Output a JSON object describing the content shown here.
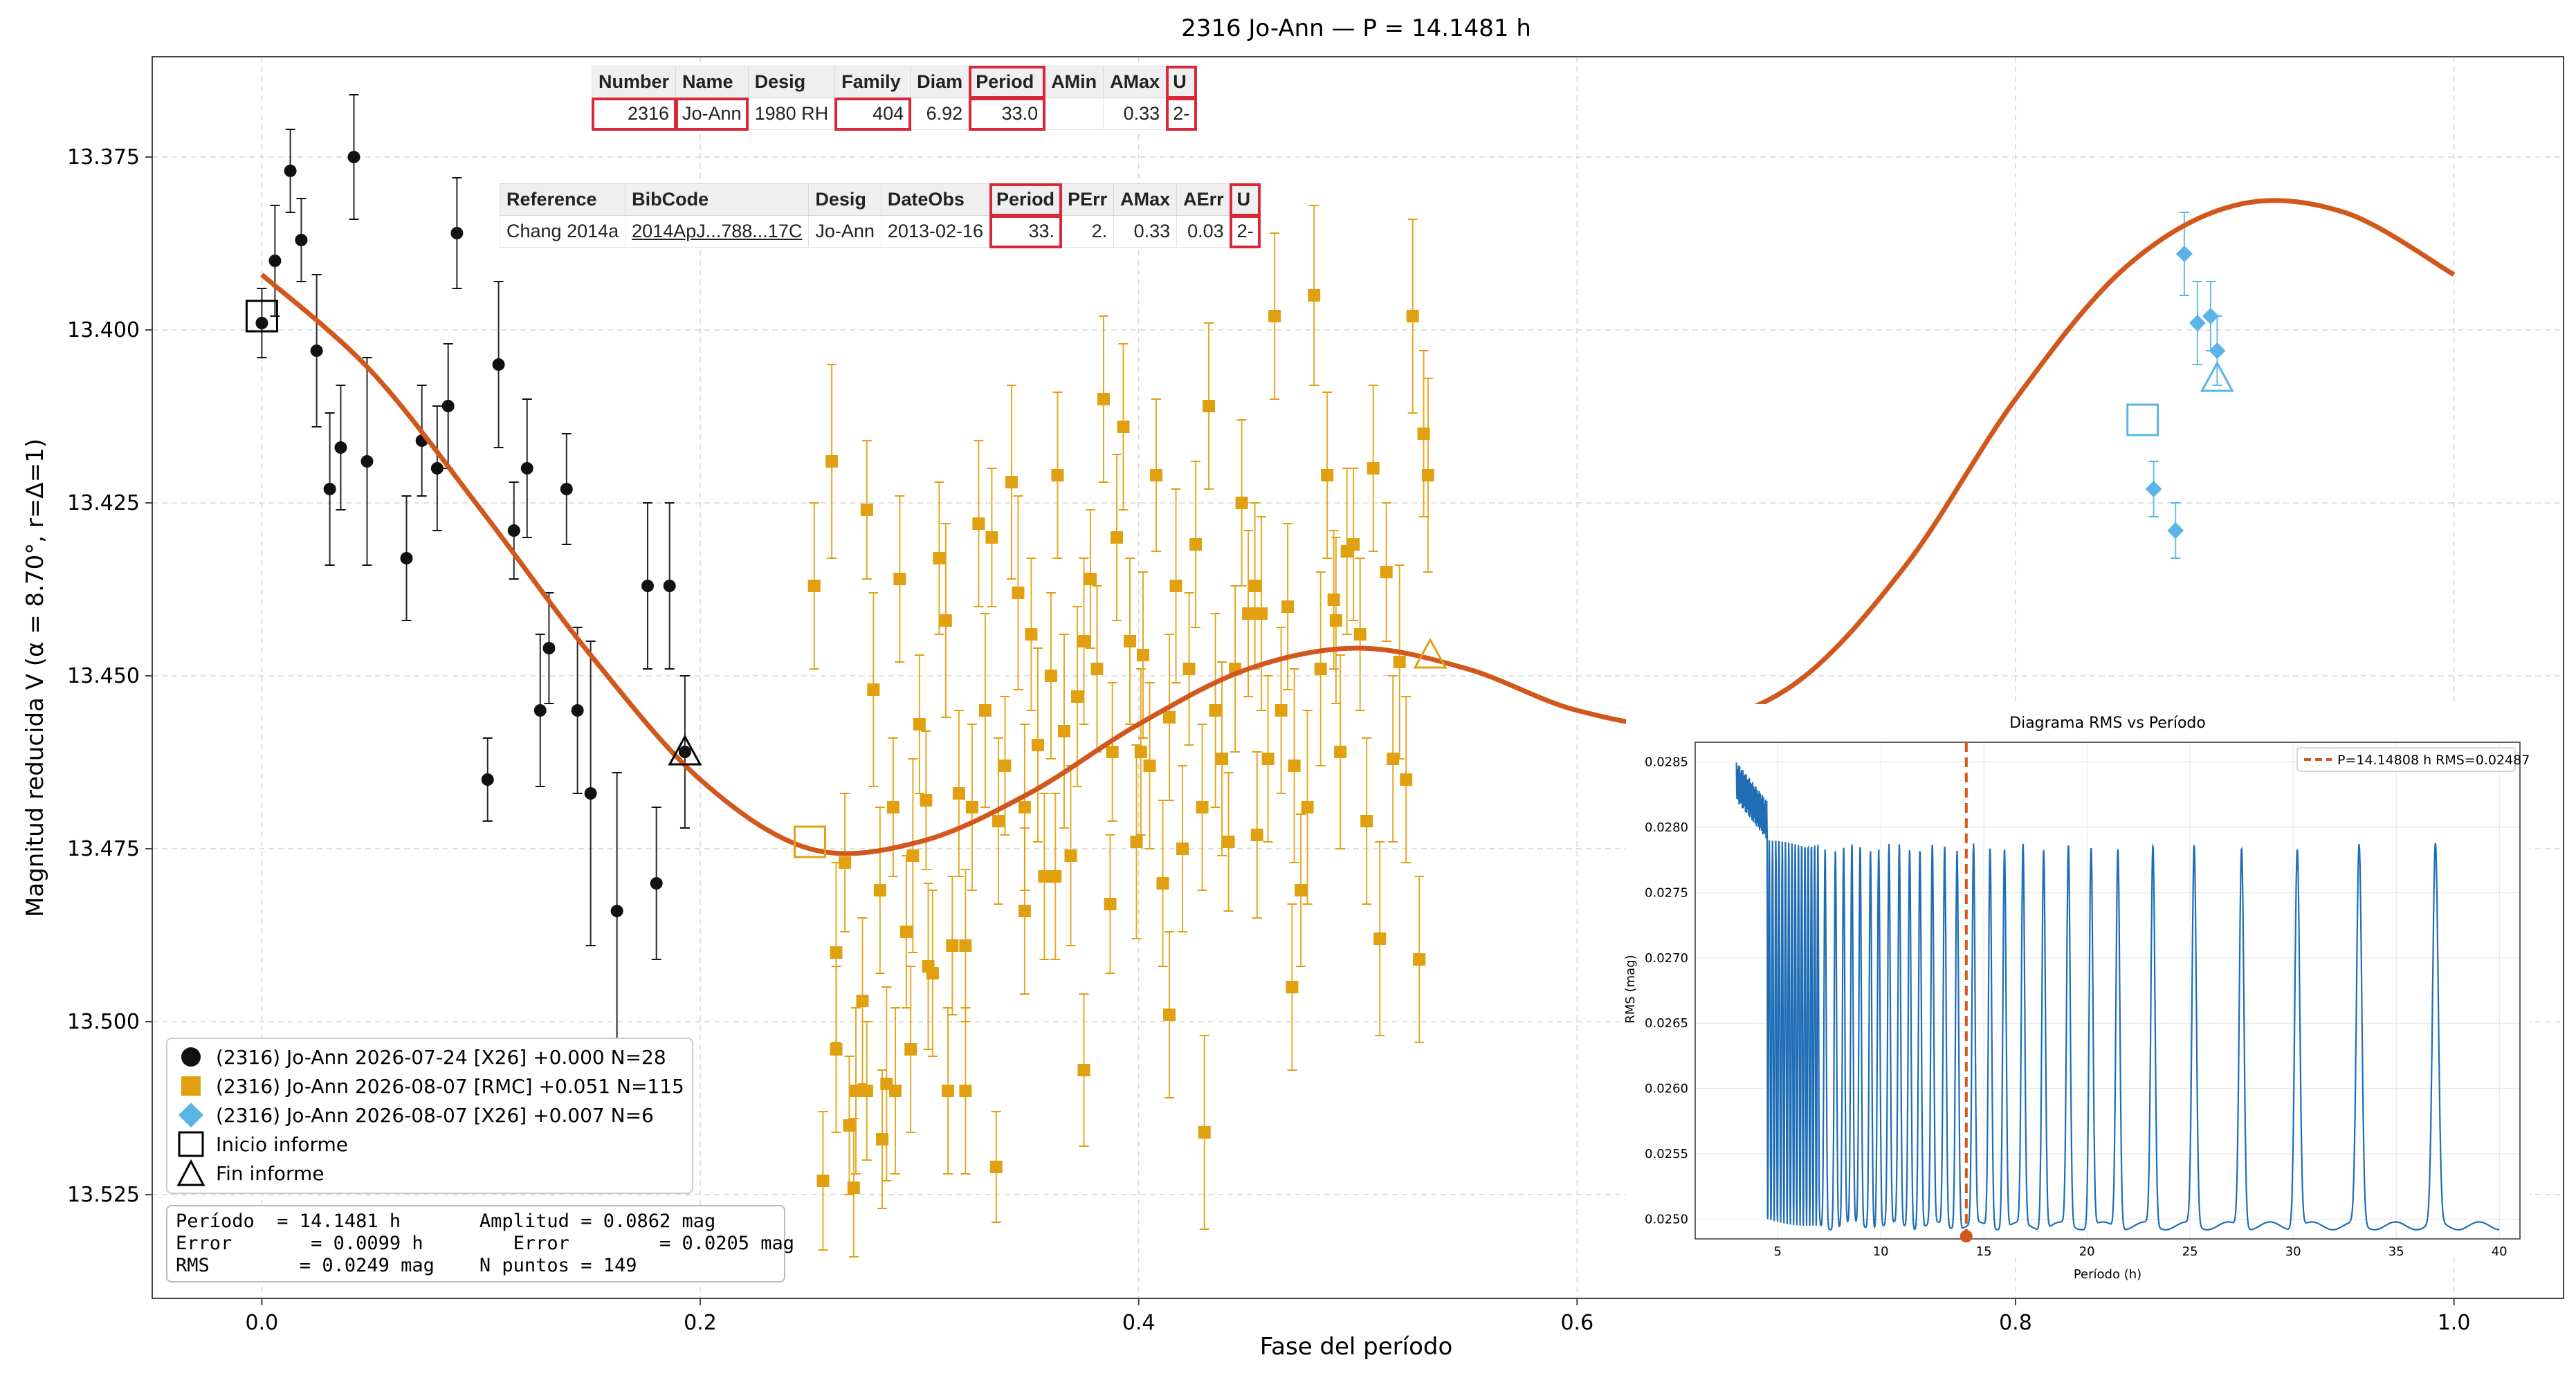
{
  "title": "2316 Jo-Ann — P = 14.1481 h",
  "xlabel": "Fase del período",
  "ylabel": "Magnitud reducida V  (α = 8.70°, r=Δ=1)",
  "lcdb_table": {
    "headers": [
      "Number",
      "Name",
      "Desig",
      "Family",
      "Diam",
      "Period",
      "AMin",
      "AMax",
      "U"
    ],
    "row": [
      "2316",
      "Jo-Ann",
      "1980 RH",
      "404",
      "6.92",
      "33.0",
      "",
      "0.33",
      "2-"
    ]
  },
  "ref_table": {
    "headers": [
      "Reference",
      "BibCode",
      "Desig",
      "DateObs",
      "Period",
      "PErr",
      "AMax",
      "AErr",
      "U"
    ],
    "row": [
      "Chang 2014a",
      "2014ApJ...788...17C",
      "Jo-Ann",
      "2013-02-16",
      "33.",
      "2.",
      "0.33",
      "0.03",
      "2-"
    ]
  },
  "legend": [
    {
      "label": "(2316) Jo-Ann 2026-07-24 [X26] +0.000 N=28",
      "marker": "circle",
      "color": "#111111"
    },
    {
      "label": "(2316) Jo-Ann 2026-08-07 [RMC] +0.051 N=115",
      "marker": "square",
      "color": "#e0a010"
    },
    {
      "label": "(2316) Jo-Ann 2026-08-07 [X26] +0.007 N=6",
      "marker": "diamond",
      "color": "#5ab4e8"
    },
    {
      "label": "Inicio informe",
      "marker": "open-square",
      "color": "#000000"
    },
    {
      "label": "Fin informe",
      "marker": "open-triangle",
      "color": "#000000"
    }
  ],
  "stats": {
    "line1": "Período  = 14.1481 h       Amplitud = 0.0862 mag",
    "line2": "Error       = 0.0099 h        Error        = 0.0205 mag",
    "line3": "RMS        = 0.0249 mag    N puntos = 149"
  },
  "inset": {
    "title": "Diagrama RMS vs Período",
    "xlabel": "Período (h)",
    "ylabel": "RMS (mag)",
    "legend": "P=14.14808 h   RMS=0.02487",
    "xticks": [
      5,
      10,
      15,
      20,
      25,
      30,
      35,
      40
    ],
    "yticks": [
      "0.0250",
      "0.0255",
      "0.0260",
      "0.0265",
      "0.0270",
      "0.0275",
      "0.0280",
      "0.0285"
    ],
    "xlim": [
      1,
      41
    ],
    "ylim": [
      0.02485,
      0.02865
    ],
    "best_period": 14.14808,
    "best_rms": 0.02487,
    "peaks": [
      4.8,
      5.3,
      5.7,
      6.1,
      6.5,
      6.9,
      7.3,
      7.8,
      8.2,
      8.6,
      9.0,
      9.5,
      9.9,
      10.4,
      10.9,
      11.4,
      11.9,
      12.5,
      13.1,
      13.7,
      14.5,
      15.3,
      16.0,
      16.9,
      17.9,
      19.1,
      20.2,
      21.5,
      23.2,
      25.2,
      27.5,
      30.2,
      33.2,
      36.9
    ],
    "colors": {
      "line": "#1f6db5",
      "marker": "#d2571c"
    }
  },
  "chart_data": {
    "type": "scatter",
    "title": "2316 Jo-Ann — P = 14.1481 h",
    "xlabel": "Fase del período",
    "ylabel": "Magnitud reducida V  (α = 8.70°, r=Δ=1)",
    "xlim": [
      -0.05,
      1.05
    ],
    "ylim": [
      13.54,
      13.3605
    ],
    "y_inverted": true,
    "xticks": [
      "0.0",
      "0.2",
      "0.4",
      "0.6",
      "0.8",
      "1.0"
    ],
    "yticks": [
      "13.375",
      "13.400",
      "13.425",
      "13.450",
      "13.475",
      "13.500",
      "13.525"
    ],
    "grid": true,
    "legend_position": "lower-left",
    "fit": {
      "name": "fit",
      "color": "#d2571c",
      "x": [
        0.0,
        0.05,
        0.1,
        0.15,
        0.2,
        0.25,
        0.3,
        0.35,
        0.4,
        0.45,
        0.5,
        0.55,
        0.6,
        0.65,
        0.7,
        0.75,
        0.8,
        0.85,
        0.9,
        0.95,
        1.0
      ],
      "y": [
        13.392,
        13.406,
        13.426,
        13.447,
        13.465,
        13.475,
        13.474,
        13.467,
        13.457,
        13.449,
        13.446,
        13.449,
        13.455,
        13.457,
        13.451,
        13.434,
        13.41,
        13.391,
        13.382,
        13.383,
        13.392
      ]
    },
    "series": [
      {
        "name": "(2316) Jo-Ann 2026-07-24 [X26] +0.000 N=28",
        "marker": "circle",
        "color": "#111111",
        "x": [
          0.0,
          0.006,
          0.013,
          0.018,
          0.025,
          0.031,
          0.036,
          0.048,
          0.066,
          0.073,
          0.08,
          0.085,
          0.089,
          0.103,
          0.108,
          0.115,
          0.121,
          0.127,
          0.131,
          0.139,
          0.144,
          0.15,
          0.162,
          0.176,
          0.18,
          0.186,
          0.193,
          0.042
        ],
        "y": [
          13.399,
          13.39,
          13.377,
          13.387,
          13.403,
          13.423,
          13.417,
          13.419,
          13.433,
          13.416,
          13.42,
          13.411,
          13.386,
          13.465,
          13.405,
          13.429,
          13.42,
          13.455,
          13.446,
          13.423,
          13.455,
          13.467,
          13.484,
          13.437,
          13.48,
          13.437,
          13.461,
          13.375
        ],
        "err": [
          0.005,
          0.008,
          0.006,
          0.006,
          0.011,
          0.011,
          0.009,
          0.015,
          0.009,
          0.008,
          0.009,
          0.009,
          0.008,
          0.006,
          0.012,
          0.007,
          0.01,
          0.011,
          0.008,
          0.008,
          0.012,
          0.022,
          0.02,
          0.012,
          0.011,
          0.012,
          0.011,
          0.009
        ]
      },
      {
        "name": "(2316) Jo-Ann 2026-08-07 [RMC] +0.051 N=115",
        "marker": "square",
        "color": "#e0a010",
        "x": [
          0.252,
          0.256,
          0.26,
          0.262,
          0.266,
          0.268,
          0.271,
          0.274,
          0.276,
          0.279,
          0.282,
          0.285,
          0.288,
          0.291,
          0.294,
          0.297,
          0.3,
          0.303,
          0.306,
          0.309,
          0.312,
          0.315,
          0.318,
          0.321,
          0.324,
          0.327,
          0.33,
          0.333,
          0.336,
          0.339,
          0.342,
          0.345,
          0.348,
          0.351,
          0.354,
          0.357,
          0.36,
          0.363,
          0.366,
          0.369,
          0.372,
          0.375,
          0.378,
          0.381,
          0.384,
          0.387,
          0.39,
          0.393,
          0.396,
          0.399,
          0.402,
          0.405,
          0.408,
          0.411,
          0.414,
          0.417,
          0.42,
          0.423,
          0.426,
          0.429,
          0.432,
          0.435,
          0.438,
          0.441,
          0.444,
          0.447,
          0.45,
          0.453,
          0.456,
          0.459,
          0.462,
          0.465,
          0.468,
          0.471,
          0.474,
          0.477,
          0.48,
          0.483,
          0.486,
          0.489,
          0.492,
          0.495,
          0.498,
          0.501,
          0.504,
          0.507,
          0.51,
          0.513,
          0.516,
          0.519,
          0.522,
          0.525,
          0.528,
          0.53,
          0.532,
          0.262,
          0.27,
          0.276,
          0.283,
          0.289,
          0.296,
          0.304,
          0.313,
          0.321,
          0.335,
          0.348,
          0.362,
          0.375,
          0.388,
          0.401,
          0.414,
          0.43,
          0.454,
          0.47,
          0.49
        ],
        "y": [
          13.437,
          13.523,
          13.419,
          13.49,
          13.477,
          13.515,
          13.51,
          13.497,
          13.426,
          13.452,
          13.481,
          13.509,
          13.469,
          13.436,
          13.487,
          13.476,
          13.457,
          13.468,
          13.493,
          13.433,
          13.442,
          13.489,
          13.467,
          13.51,
          13.469,
          13.428,
          13.455,
          13.43,
          13.471,
          13.463,
          13.422,
          13.438,
          13.469,
          13.444,
          13.46,
          13.479,
          13.45,
          13.421,
          13.458,
          13.476,
          13.453,
          13.445,
          13.436,
          13.449,
          13.41,
          13.483,
          13.43,
          13.414,
          13.445,
          13.474,
          13.447,
          13.463,
          13.421,
          13.48,
          13.456,
          13.437,
          13.475,
          13.449,
          13.431,
          13.469,
          13.411,
          13.455,
          13.462,
          13.474,
          13.449,
          13.425,
          13.441,
          13.437,
          13.441,
          13.462,
          13.398,
          13.455,
          13.44,
          13.463,
          13.481,
          13.469,
          13.395,
          13.449,
          13.421,
          13.439,
          13.461,
          13.432,
          13.431,
          13.444,
          13.471,
          13.42,
          13.488,
          13.435,
          13.462,
          13.448,
          13.465,
          13.398,
          13.491,
          13.415,
          13.421,
          13.504,
          13.524,
          13.51,
          13.517,
          13.51,
          13.504,
          13.492,
          13.51,
          13.489,
          13.521,
          13.484,
          13.479,
          13.507,
          13.461,
          13.461,
          13.499,
          13.516,
          13.473,
          13.495,
          13.442
        ],
        "err": [
          0.012,
          0.01,
          0.014,
          0.013,
          0.01,
          0.01,
          0.012,
          0.012,
          0.01,
          0.014,
          0.012,
          0.014,
          0.01,
          0.012,
          0.011,
          0.014,
          0.01,
          0.01,
          0.012,
          0.011,
          0.014,
          0.01,
          0.012,
          0.012,
          0.012,
          0.012,
          0.014,
          0.01,
          0.012,
          0.01,
          0.014,
          0.014,
          0.012,
          0.011,
          0.014,
          0.012,
          0.012,
          0.012,
          0.014,
          0.013,
          0.013,
          0.012,
          0.01,
          0.012,
          0.012,
          0.01,
          0.012,
          0.012,
          0.012,
          0.014,
          0.012,
          0.012,
          0.011,
          0.012,
          0.012,
          0.014,
          0.012,
          0.011,
          0.012,
          0.012,
          0.012,
          0.014,
          0.014,
          0.01,
          0.012,
          0.012,
          0.012,
          0.012,
          0.014,
          0.012,
          0.012,
          0.012,
          0.012,
          0.014,
          0.011,
          0.014,
          0.013,
          0.014,
          0.012,
          0.01,
          0.014,
          0.012,
          0.011,
          0.011,
          0.012,
          0.012,
          0.014,
          0.01,
          0.012,
          0.014,
          0.012,
          0.014,
          0.012,
          0.012,
          0.014,
          0.012,
          0.01,
          0.01,
          0.01,
          0.012,
          0.012,
          0.012,
          0.012,
          0.011,
          0.008,
          0.012,
          0.012,
          0.011,
          0.01,
          0.012,
          0.012,
          0.014,
          0.012,
          0.012,
          0.012
        ]
      },
      {
        "name": "(2316) Jo-Ann 2026-08-07 [X26] +0.007 N=6",
        "marker": "diamond",
        "color": "#5ab4e8",
        "x": [
          0.863,
          0.873,
          0.877,
          0.883,
          0.889,
          0.892
        ],
        "y": [
          13.423,
          13.429,
          13.389,
          13.399,
          13.398,
          13.403
        ],
        "err": [
          0.004,
          0.004,
          0.006,
          0.006,
          0.005,
          0.005
        ]
      }
    ],
    "report_markers": [
      {
        "label": "Inicio informe",
        "x": [
          0.0,
          0.25,
          0.858
        ],
        "y": [
          13.398,
          13.474,
          13.413
        ],
        "colors": [
          "#000000",
          "#e0a010",
          "#5ab4e8"
        ],
        "marker": "open-square"
      },
      {
        "label": "Fin informe",
        "x": [
          0.193,
          0.533,
          0.892
        ],
        "y": [
          13.461,
          13.447,
          13.407
        ],
        "colors": [
          "#000000",
          "#e0a010",
          "#5ab4e8"
        ],
        "marker": "open-triangle"
      }
    ]
  }
}
